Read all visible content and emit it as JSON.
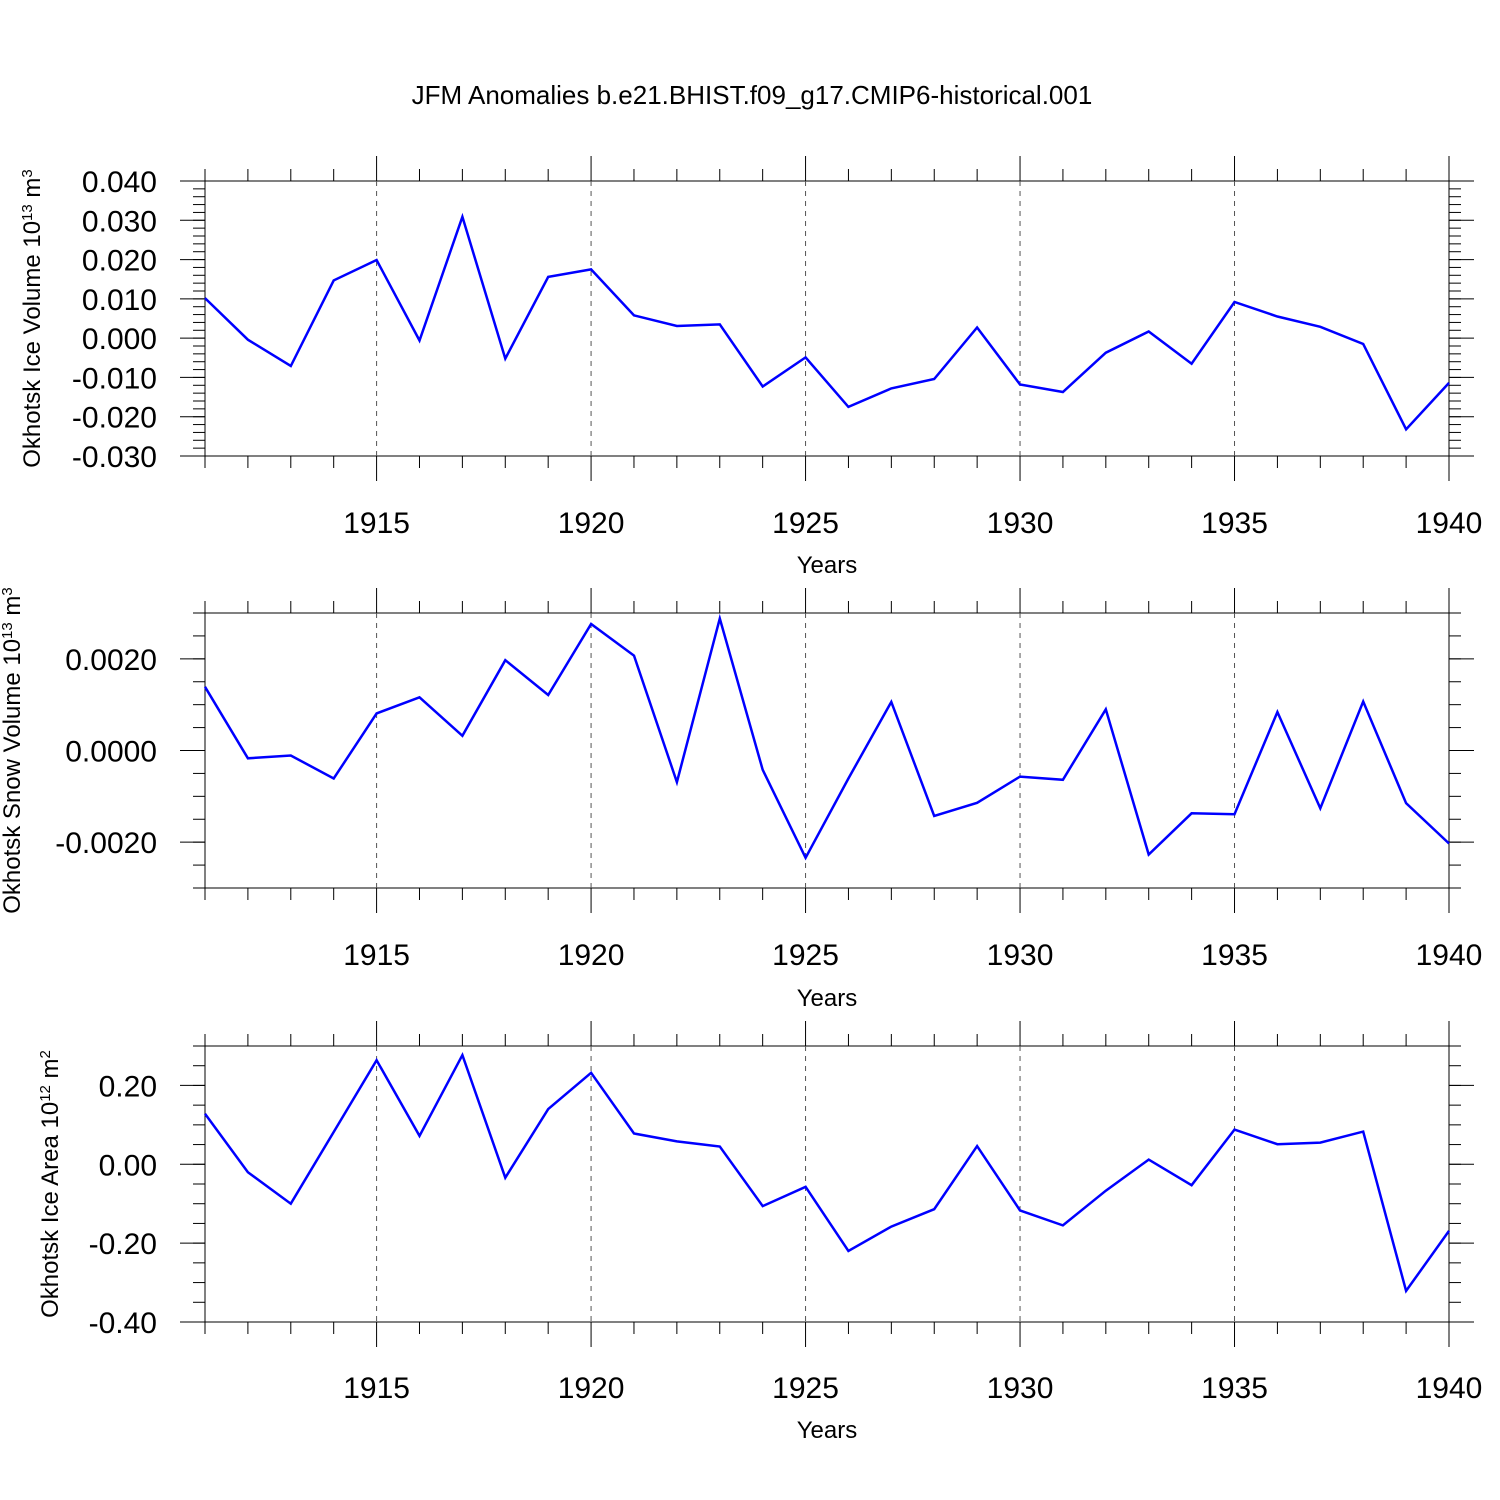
{
  "title": "JFM Anomalies b.e21.BHIST.f09_g17.CMIP6-historical.001",
  "chart_data": [
    {
      "type": "line",
      "ylabel": "Okhotsk Ice Volume 10",
      "ylabel_exp": "13",
      "ylabel_unit": " m",
      "ylabel_unit_exp": "3",
      "xlabel": "Years",
      "xlim": [
        1911,
        1940
      ],
      "ylim": [
        -0.03,
        0.04
      ],
      "yticks": [
        -0.03,
        -0.02,
        -0.01,
        0.0,
        0.01,
        0.02,
        0.03,
        0.04
      ],
      "ytick_labels": [
        "-0.030",
        "-0.020",
        "-0.010",
        "0.000",
        "0.010",
        "0.020",
        "0.030",
        "0.040"
      ],
      "yminor_step": 0.002,
      "xticks": [
        1915,
        1920,
        1925,
        1930,
        1935,
        1940
      ],
      "xtick_labels": [
        "1915",
        "1920",
        "1925",
        "1930",
        "1935",
        "1940"
      ],
      "x": [
        1911,
        1912,
        1913,
        1914,
        1915,
        1916,
        1917,
        1918,
        1919,
        1920,
        1921,
        1922,
        1923,
        1924,
        1925,
        1926,
        1927,
        1928,
        1929,
        1930,
        1931,
        1932,
        1933,
        1934,
        1935,
        1936,
        1937,
        1938,
        1939,
        1940
      ],
      "series": [
        {
          "name": "Ice Volume",
          "color": "#0000ff",
          "values": [
            0.0102,
            -0.0004,
            -0.0071,
            0.0147,
            0.0199,
            -0.0006,
            0.0309,
            -0.0052,
            0.0156,
            0.0175,
            0.0058,
            0.0031,
            0.0035,
            -0.0123,
            -0.0049,
            -0.0175,
            -0.0128,
            -0.0104,
            0.0027,
            -0.0118,
            -0.0137,
            -0.0037,
            0.0017,
            -0.0065,
            0.0092,
            0.0055,
            0.0029,
            -0.0015,
            -0.0232,
            -0.0114
          ]
        }
      ]
    },
    {
      "type": "line",
      "ylabel": "Okhotsk Snow Volume 10",
      "ylabel_exp": "13",
      "ylabel_unit": " m",
      "ylabel_unit_exp": "3",
      "xlabel": "Years",
      "xlim": [
        1911,
        1940
      ],
      "ylim": [
        -0.003,
        0.003
      ],
      "yticks": [
        -0.002,
        0.0,
        0.002
      ],
      "ytick_labels": [
        "-0.0020",
        "0.0000",
        "0.0020"
      ],
      "yminor_step": 0.0005,
      "xticks": [
        1915,
        1920,
        1925,
        1930,
        1935,
        1940
      ],
      "xtick_labels": [
        "1915",
        "1920",
        "1925",
        "1930",
        "1935",
        "1940"
      ],
      "x": [
        1911,
        1912,
        1913,
        1914,
        1915,
        1916,
        1917,
        1918,
        1919,
        1920,
        1921,
        1922,
        1923,
        1924,
        1925,
        1926,
        1927,
        1928,
        1929,
        1930,
        1931,
        1932,
        1933,
        1934,
        1935,
        1936,
        1937,
        1938,
        1939,
        1940
      ],
      "series": [
        {
          "name": "Snow Volume",
          "color": "#0000ff",
          "values": [
            0.00139,
            -0.00017,
            -0.00011,
            -0.00061,
            0.00081,
            0.00116,
            0.00032,
            0.00197,
            0.00121,
            0.00276,
            0.00207,
            -0.00069,
            0.00288,
            -0.00042,
            -0.00234,
            -0.00061,
            0.00106,
            -0.00143,
            -0.00114,
            -0.00057,
            -0.00064,
            0.0009,
            -0.00227,
            -0.00137,
            -0.00139,
            0.00084,
            -0.00126,
            0.00107,
            -0.00115,
            -0.00203
          ]
        }
      ]
    },
    {
      "type": "line",
      "ylabel": "Okhotsk Ice Area 10",
      "ylabel_exp": "12",
      "ylabel_unit": " m",
      "ylabel_unit_exp": "2",
      "xlabel": "Years",
      "xlim": [
        1911,
        1940
      ],
      "ylim": [
        -0.4,
        0.3
      ],
      "yticks": [
        -0.4,
        -0.2,
        0.0,
        0.2
      ],
      "ytick_labels": [
        "-0.40",
        "-0.20",
        "0.00",
        "0.20"
      ],
      "yminor_step": 0.05,
      "xticks": [
        1915,
        1920,
        1925,
        1930,
        1935,
        1940
      ],
      "xtick_labels": [
        "1915",
        "1920",
        "1925",
        "1930",
        "1935",
        "1940"
      ],
      "x": [
        1911,
        1912,
        1913,
        1914,
        1915,
        1916,
        1917,
        1918,
        1919,
        1920,
        1921,
        1922,
        1923,
        1924,
        1925,
        1926,
        1927,
        1928,
        1929,
        1930,
        1931,
        1932,
        1933,
        1934,
        1935,
        1936,
        1937,
        1938,
        1939,
        1940
      ],
      "series": [
        {
          "name": "Ice Area",
          "color": "#0000ff",
          "values": [
            0.128,
            -0.02,
            -0.1,
            0.082,
            0.264,
            0.072,
            0.277,
            -0.034,
            0.14,
            0.232,
            0.078,
            0.058,
            0.045,
            -0.106,
            -0.057,
            -0.22,
            -0.158,
            -0.114,
            0.046,
            -0.117,
            -0.155,
            -0.067,
            0.012,
            -0.053,
            0.088,
            0.051,
            0.055,
            0.083,
            -0.321,
            -0.169
          ]
        }
      ]
    }
  ]
}
